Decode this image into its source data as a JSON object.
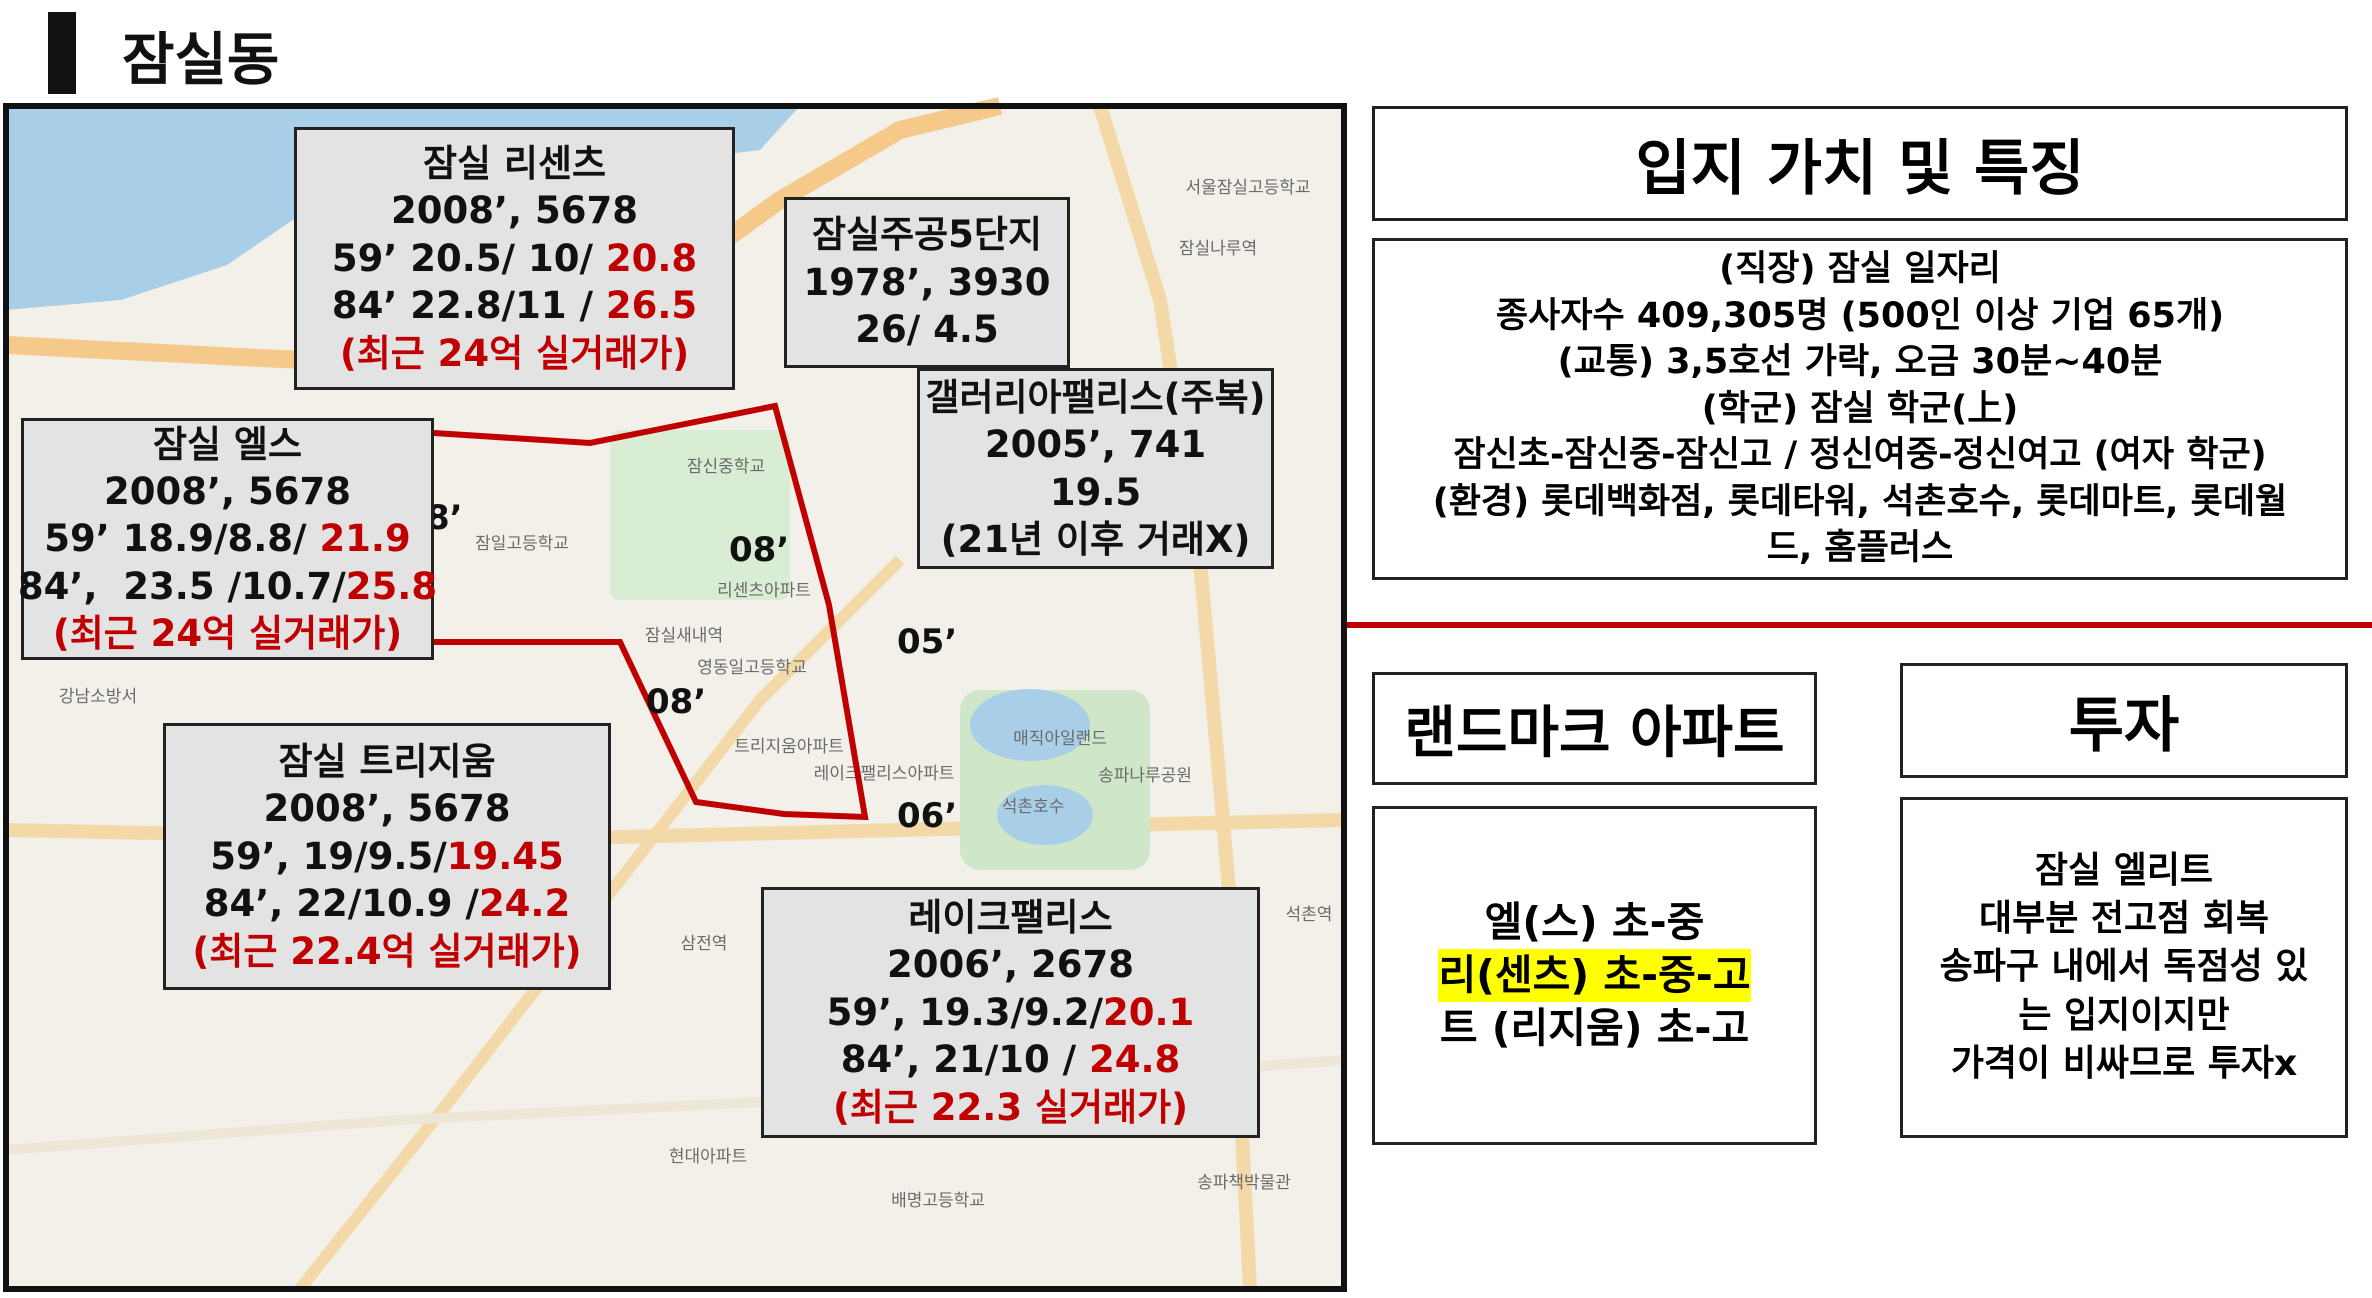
{
  "header": {
    "title": "잠실동"
  },
  "map": {
    "labels": [
      "잠신중학교",
      "잠일고등학교",
      "리센츠아파트",
      "잠실새내역",
      "영동일고등학교",
      "트리지움아파트",
      "레이크팰리스아파트",
      "석촌호수",
      "매직아일랜드",
      "송파나루공원",
      "강남소방서",
      "서울잠실고등학교",
      "잠실나루역",
      "삼전역",
      "석촌역",
      "송파책박물관",
      "배명고등학교",
      "현대아파트"
    ],
    "years": [
      "08’",
      "05’",
      "08’",
      "06’",
      "8’"
    ],
    "boundary_color": "#c00000"
  },
  "highlight_color": "#c00000",
  "apartments": [
    {
      "lines": [
        {
          "text": "잠실 리센츠"
        },
        {
          "text": "2008’, 5678"
        },
        {
          "text": "59’ 20.5/ 10/ ",
          "highlight": "20.8"
        },
        {
          "text": "84’ 22.8/11 / ",
          "highlight": "26.5"
        },
        {
          "highlight": "(최근 24억 실거래가)"
        }
      ]
    },
    {
      "lines": [
        {
          "text": "잠실주공5단지"
        },
        {
          "text": "1978’, 3930"
        },
        {
          "text": "26/ 4.5"
        }
      ]
    },
    {
      "lines": [
        {
          "text": "갤러리아팰리스(주복)"
        },
        {
          "text": "2005’, 741"
        },
        {
          "text": "19.5"
        },
        {
          "text": "(21년 이후 거래X)"
        }
      ]
    },
    {
      "lines": [
        {
          "text": "잠실 엘스"
        },
        {
          "text": "2008’, 5678"
        },
        {
          "text": "59’ 18.9/8.8/ ",
          "highlight": "21.9"
        },
        {
          "text": "84’,  23.5 /10.7/",
          "highlight": "25.8"
        },
        {
          "highlight": "(최근 24억 실거래가)"
        }
      ]
    },
    {
      "lines": [
        {
          "text": "잠실 트리지움"
        },
        {
          "text": "2008’, 5678"
        },
        {
          "text": "59’, 19/9.5/",
          "highlight": "19.45"
        },
        {
          "text": "84’, 22/10.9 /",
          "highlight": "24.2"
        },
        {
          "highlight": "(최근 22.4억 실거래가)"
        }
      ]
    },
    {
      "lines": [
        {
          "text": "레이크팰리스"
        },
        {
          "text": "2006’, 2678"
        },
        {
          "text": "59’, 19.3/9.2/",
          "highlight": "20.1"
        },
        {
          "text": "84’, 21/10 / ",
          "highlight": "24.8"
        },
        {
          "highlight": "(최근 22.3 실거래가)"
        }
      ]
    }
  ],
  "location": {
    "title": "입지 가치 및 특징",
    "lines": [
      "(직장) 잠실 일자리",
      "종사자수 409,305명 (500인 이상 기업 65개)",
      "(교통) 3,5호선 가락, 오금 30분~40분",
      "(학군) 잠실 학군(上)",
      "잠신초-잠신중-잠신고 / 정신여중-정신여고 (여자 학군)",
      "(환경) 롯데백화점, 롯데타워, 석촌호수, 롯데마트, 롯데월",
      "드, 홈플러스"
    ]
  },
  "landmark": {
    "title": "랜드마크 아파트",
    "lines": [
      {
        "text": "엘(스) 초-중"
      },
      {
        "text": "리(센츠) 초-중-고",
        "background": "#ffff00"
      },
      {
        "text": "트 (리지움) 초-고"
      }
    ]
  },
  "invest": {
    "title": "투자",
    "lines": [
      "잠실 엘리트",
      "대부분 전고점 회복",
      "송파구 내에서 독점성 있",
      "는 입지이지만",
      "가격이 비싸므로 투자x"
    ]
  }
}
